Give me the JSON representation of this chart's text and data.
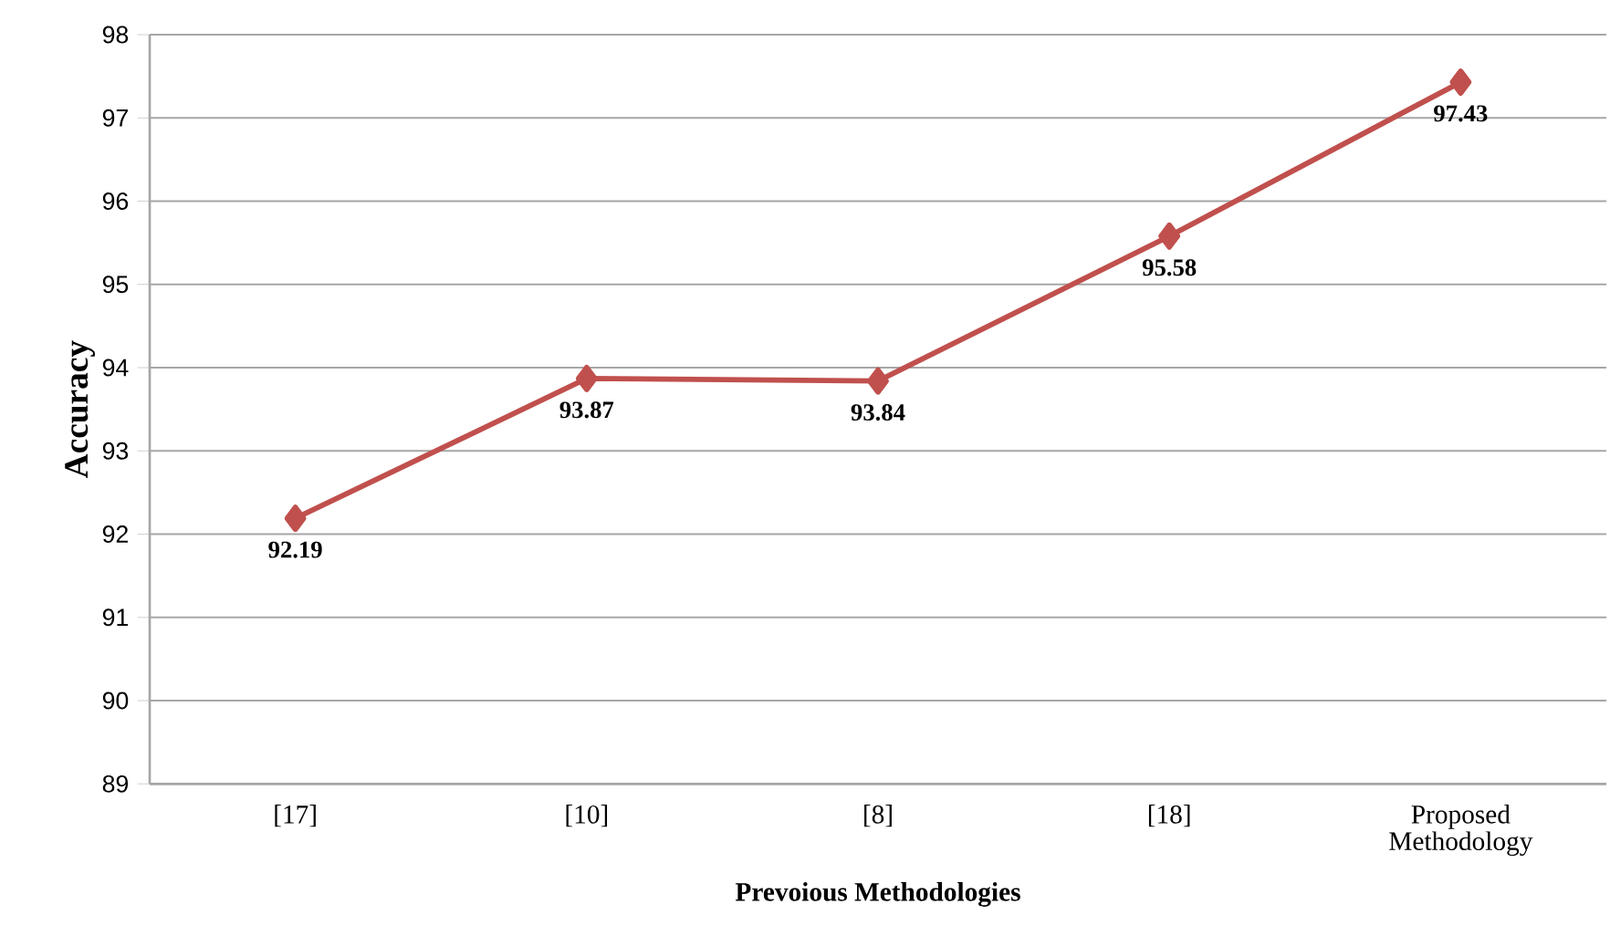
{
  "chart_data": {
    "type": "line",
    "xlabel": "Prevoious  Methodologies",
    "ylabel": "Accuracy",
    "categories": [
      "[17]",
      "[10]",
      "[8]",
      "[18]",
      "Proposed Methodology"
    ],
    "values": [
      92.19,
      93.87,
      93.84,
      95.58,
      97.43
    ],
    "color": "#c0504d",
    "marker": "diamond",
    "line_style": "solid",
    "data_labels": true,
    "grid": "y",
    "ylim": [
      89,
      98
    ],
    "yticks": [
      89,
      90,
      91,
      92,
      93,
      94,
      95,
      96,
      97,
      98
    ]
  }
}
